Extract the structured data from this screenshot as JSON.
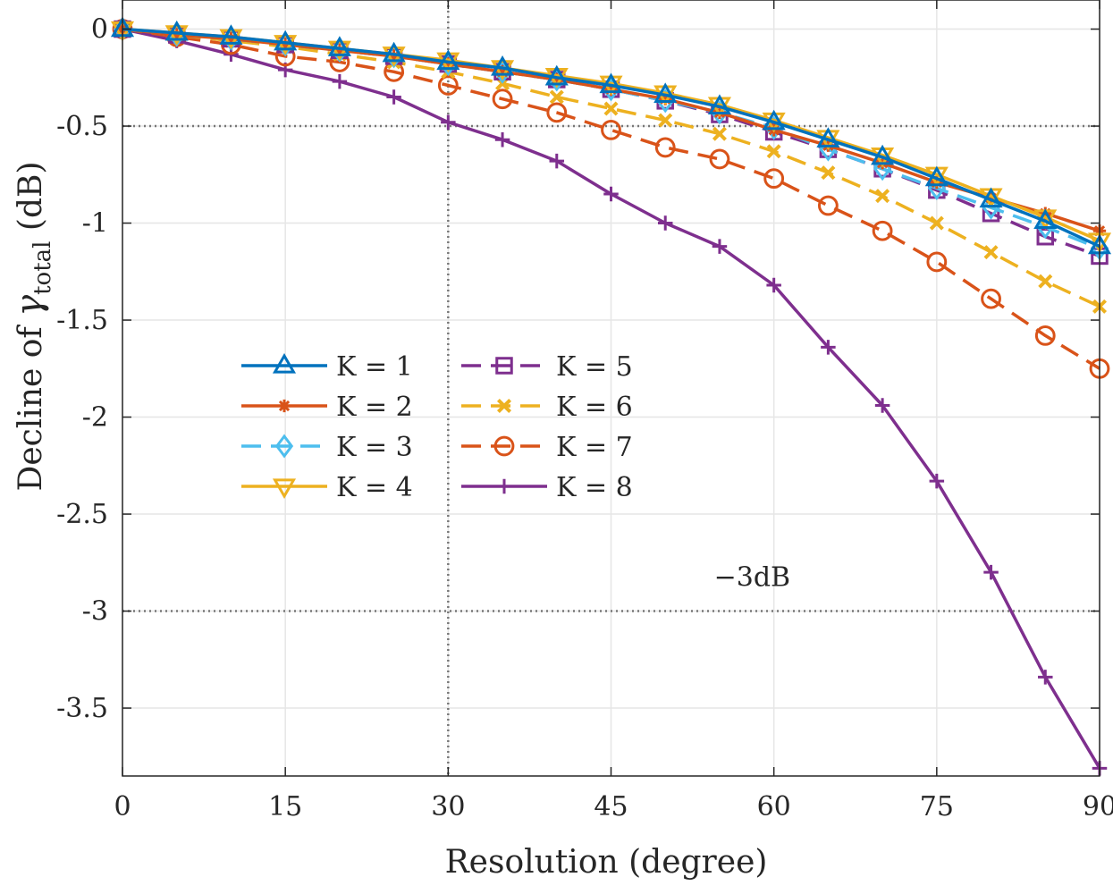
{
  "chart_data": {
    "type": "line",
    "title": "",
    "xlabel": "Resolution (degree)",
    "ylabel_prefix": "Decline of ",
    "ylabel_symbol": "γ",
    "ylabel_subscript": "total",
    "ylabel_suffix": " (dB)",
    "xlim": [
      0,
      90
    ],
    "ylim": [
      -3.85,
      0.15
    ],
    "xticks": [
      0,
      15,
      30,
      45,
      60,
      75,
      90
    ],
    "xtick_labels": [
      "0",
      "15",
      "30",
      "45",
      "60",
      "75",
      "90"
    ],
    "yticks": [
      0,
      -0.5,
      -1,
      -1.5,
      -2,
      -2.5,
      -3,
      -3.5
    ],
    "ytick_labels": [
      "0",
      "-0.5",
      "-1",
      "-1.5",
      "-2",
      "-2.5",
      "-3",
      "-3.5"
    ],
    "grid": true,
    "reference_lines": [
      {
        "orientation": "horizontal",
        "value": -0.5
      },
      {
        "orientation": "horizontal",
        "value": -3
      },
      {
        "orientation": "vertical",
        "value": 30
      }
    ],
    "annotation": {
      "text": "−3dB",
      "x": 58,
      "y": -2.87
    },
    "legend_location": "center-left",
    "x": [
      0,
      5,
      10,
      15,
      20,
      25,
      30,
      35,
      40,
      45,
      50,
      55,
      60,
      65,
      70,
      75,
      80,
      85,
      90
    ],
    "series": [
      {
        "name": "K = 1",
        "color": "#0072BD",
        "marker": "triangle-up",
        "dash": "solid",
        "values": [
          0,
          -0.02,
          -0.04,
          -0.07,
          -0.1,
          -0.13,
          -0.17,
          -0.2,
          -0.25,
          -0.29,
          -0.34,
          -0.4,
          -0.48,
          -0.57,
          -0.66,
          -0.77,
          -0.88,
          -0.99,
          -1.12
        ]
      },
      {
        "name": "K = 2",
        "color": "#D95319",
        "marker": "asterisk",
        "dash": "solid",
        "values": [
          0,
          -0.03,
          -0.05,
          -0.08,
          -0.11,
          -0.14,
          -0.18,
          -0.22,
          -0.26,
          -0.31,
          -0.36,
          -0.43,
          -0.52,
          -0.6,
          -0.69,
          -0.79,
          -0.87,
          -0.95,
          -1.04
        ]
      },
      {
        "name": "K = 3",
        "color": "#4DBEEE",
        "marker": "diamond",
        "dash": "dashed",
        "values": [
          0,
          -0.03,
          -0.05,
          -0.08,
          -0.11,
          -0.14,
          -0.18,
          -0.22,
          -0.26,
          -0.31,
          -0.37,
          -0.43,
          -0.51,
          -0.62,
          -0.72,
          -0.82,
          -0.92,
          -1.02,
          -1.13
        ]
      },
      {
        "name": "K = 4",
        "color": "#EDB120",
        "marker": "triangle-down",
        "dash": "solid",
        "values": [
          0,
          -0.02,
          -0.04,
          -0.07,
          -0.1,
          -0.13,
          -0.16,
          -0.2,
          -0.24,
          -0.28,
          -0.33,
          -0.39,
          -0.47,
          -0.56,
          -0.65,
          -0.75,
          -0.86,
          -0.97,
          -1.09
        ]
      },
      {
        "name": "K = 5",
        "color": "#7E2F8E",
        "marker": "square",
        "dash": "dashed",
        "values": [
          0,
          -0.03,
          -0.05,
          -0.08,
          -0.11,
          -0.14,
          -0.18,
          -0.22,
          -0.26,
          -0.31,
          -0.37,
          -0.44,
          -0.53,
          -0.62,
          -0.72,
          -0.83,
          -0.95,
          -1.07,
          -1.17
        ]
      },
      {
        "name": "K = 6",
        "color": "#EDB120",
        "marker": "x",
        "dash": "dashed",
        "values": [
          0,
          -0.03,
          -0.06,
          -0.09,
          -0.13,
          -0.17,
          -0.22,
          -0.28,
          -0.35,
          -0.41,
          -0.47,
          -0.54,
          -0.63,
          -0.74,
          -0.86,
          -1,
          -1.15,
          -1.3,
          -1.43
        ]
      },
      {
        "name": "K = 7",
        "color": "#D95319",
        "marker": "circle",
        "dash": "dashed",
        "values": [
          0,
          -0.04,
          -0.08,
          -0.14,
          -0.17,
          -0.22,
          -0.29,
          -0.36,
          -0.43,
          -0.52,
          -0.61,
          -0.67,
          -0.77,
          -0.91,
          -1.04,
          -1.2,
          -1.39,
          -1.58,
          -1.75
        ]
      },
      {
        "name": "K = 8",
        "color": "#7E2F8E",
        "marker": "plus",
        "dash": "solid",
        "values": [
          0,
          -0.06,
          -0.13,
          -0.21,
          -0.27,
          -0.35,
          -0.48,
          -0.57,
          -0.68,
          -0.85,
          -1,
          -1.12,
          -1.32,
          -1.64,
          -1.94,
          -2.33,
          -2.8,
          -3.34,
          -3.81
        ]
      }
    ]
  }
}
